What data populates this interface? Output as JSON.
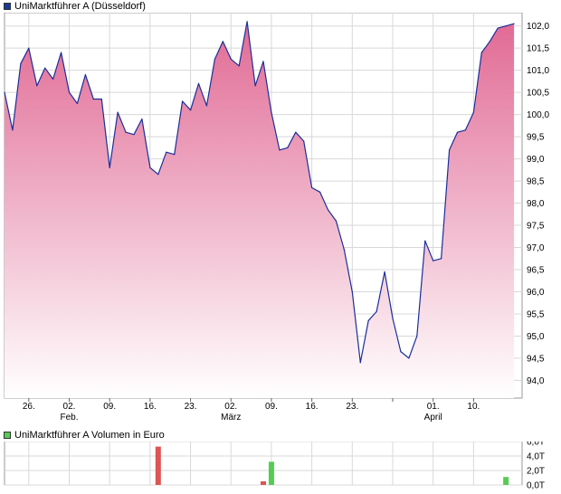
{
  "colors": {
    "line": "#1a2f9a",
    "fill_top": "#e16a95",
    "fill_bottom": "#ffffff",
    "grid": "#d8d8d8",
    "vol_up": "#55cc55",
    "vol_down": "#dd5555",
    "legend_price": "#1a3a9a",
    "legend_volume": "#55cc55"
  },
  "chart_data": [
    {
      "type": "area",
      "legend": "UniMarktführer A (Düsseldorf)",
      "legend_position": "top-left",
      "grid": true,
      "ylim": [
        93.6,
        102.3
      ],
      "y_ticks": [
        "94,0",
        "94,5",
        "95,0",
        "95,5",
        "96,0",
        "96,5",
        "97,0",
        "97,5",
        "98,0",
        "98,5",
        "99,0",
        "99,5",
        "100,0",
        "100,5",
        "101,0",
        "101,5",
        "102,0"
      ],
      "x_ticks": [
        {
          "day": 3,
          "label": "26.",
          "month": ""
        },
        {
          "day": 8,
          "label": "02.",
          "month": "Feb."
        },
        {
          "day": 13,
          "label": "09.",
          "month": ""
        },
        {
          "day": 18,
          "label": "16.",
          "month": ""
        },
        {
          "day": 23,
          "label": "23.",
          "month": ""
        },
        {
          "day": 28,
          "label": "02.",
          "month": "März"
        },
        {
          "day": 33,
          "label": "09.",
          "month": ""
        },
        {
          "day": 38,
          "label": "16.",
          "month": ""
        },
        {
          "day": 43,
          "label": "23.",
          "month": ""
        },
        {
          "day": 48,
          "label": "",
          "month": ""
        },
        {
          "day": 53,
          "label": "01.",
          "month": "April"
        },
        {
          "day": 58,
          "label": "10.",
          "month": ""
        }
      ],
      "x_range": [
        0,
        64
      ],
      "series": [
        {
          "x": [
            0,
            1,
            2,
            3,
            4,
            5,
            6,
            7,
            8,
            9,
            10,
            11,
            12,
            13,
            14,
            15,
            16,
            17,
            18,
            19,
            20,
            21,
            22,
            23,
            24,
            25,
            26,
            27,
            28,
            29,
            30,
            31,
            32,
            33,
            34,
            35,
            36,
            37,
            38,
            39,
            40,
            41,
            42,
            43,
            44,
            45,
            46,
            47,
            48,
            49,
            50,
            51,
            52,
            53,
            54,
            55,
            56,
            57,
            58,
            59,
            60,
            61,
            62,
            63
          ],
          "values": [
            100.5,
            99.65,
            101.15,
            101.5,
            100.65,
            101.05,
            100.8,
            101.4,
            100.5,
            100.25,
            100.9,
            100.35,
            100.35,
            98.8,
            100.05,
            99.6,
            99.55,
            99.9,
            98.8,
            98.65,
            99.15,
            99.1,
            100.3,
            100.1,
            100.7,
            100.2,
            101.25,
            101.65,
            101.25,
            101.1,
            102.1,
            100.65,
            101.2,
            100.05,
            99.2,
            99.25,
            99.6,
            99.4,
            98.35,
            98.25,
            97.85,
            97.6,
            96.95,
            96.0,
            94.4,
            95.35,
            95.55,
            96.45,
            95.4,
            94.65,
            94.5,
            95.0,
            97.15,
            96.7,
            96.75,
            99.2,
            99.6,
            99.65,
            100.05,
            101.4,
            101.65,
            101.95,
            102.0,
            102.05
          ]
        }
      ]
    },
    {
      "type": "bar",
      "legend": "UniMarktführer A Volumen in Euro",
      "legend_position": "top-left",
      "grid": true,
      "ylim": [
        0,
        6.0
      ],
      "y_ticks": [
        "0,0T",
        "2,0T",
        "4,0T",
        "6,0T"
      ],
      "series": [
        {
          "x": [
            19,
            32,
            33,
            62
          ],
          "values": [
            5.3,
            0.5,
            3.2,
            1.1
          ],
          "direction": [
            "down",
            "down",
            "up",
            "up"
          ]
        }
      ]
    }
  ]
}
